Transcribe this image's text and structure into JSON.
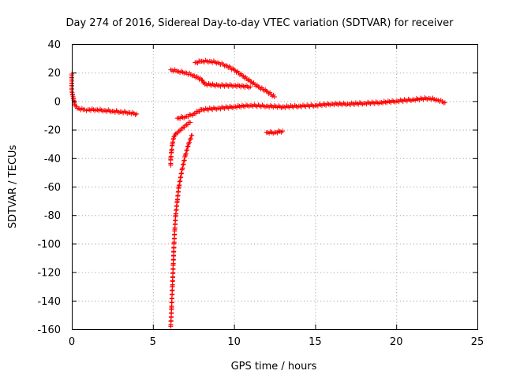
{
  "chart_data": {
    "type": "scatter",
    "title": "Day 274 of 2016, Sidereal Day-to-day VTEC variation (SDTVAR) for receiver",
    "xlabel": "GPS time / hours",
    "ylabel": "SDTVAR / TECUs",
    "xlim": [
      0,
      25
    ],
    "ylim": [
      -160,
      40
    ],
    "xticks": [
      "0",
      "5",
      "10",
      "15",
      "20",
      "25"
    ],
    "yticks": [
      "40",
      "20",
      "0",
      "-20",
      "-40",
      "-60",
      "-80",
      "-100",
      "-120",
      "-140",
      "-160"
    ],
    "grid": true,
    "marker": "+",
    "color": "#ff0000",
    "series": [
      {
        "x": [
          0.0,
          0.0,
          0.0,
          0.0,
          0.2,
          0.4,
          0.7,
          1.0,
          1.5,
          2.0,
          2.5,
          3.0,
          3.5,
          4.0
        ],
        "y": [
          19,
          15,
          11,
          7,
          -3,
          -5,
          -6,
          -6,
          -6,
          -6.5,
          -7,
          -7.5,
          -8,
          -9
        ]
      },
      {
        "x": [
          6.1,
          6.5,
          7.0,
          7.5,
          8.0,
          8.2
        ],
        "y": [
          22,
          21,
          20,
          18,
          15,
          12
        ]
      },
      {
        "x": [
          7.6,
          8.0,
          8.5,
          9.0,
          9.5,
          10.0,
          10.5,
          11.0,
          11.5,
          12.0,
          12.5
        ],
        "y": [
          27,
          28,
          28,
          27,
          25,
          22,
          18,
          14,
          10,
          7,
          3
        ]
      },
      {
        "x": [
          8.2,
          9.0,
          10.0,
          11.0
        ],
        "y": [
          12,
          11,
          11,
          10
        ]
      },
      {
        "x": [
          6.5,
          7.0,
          7.5,
          8.0,
          9.0,
          10.0,
          11.0,
          12.0,
          13.0
        ],
        "y": [
          -12,
          -11,
          -9,
          -6,
          -5,
          -4,
          -3,
          -3.5,
          -4
        ]
      },
      {
        "x": [
          12.0,
          12.5,
          13.0
        ],
        "y": [
          -22,
          -22,
          -21
        ]
      },
      {
        "x": [
          13.0,
          14.0,
          15.0,
          16.0,
          17.0,
          18.0,
          19.0,
          20.0,
          21.0,
          22.0,
          22.5,
          23.0
        ],
        "y": [
          -4,
          -3.5,
          -3,
          -2,
          -2,
          -1.5,
          -1,
          0,
          1,
          2,
          1,
          -1
        ]
      },
      {
        "x": [
          6.1,
          6.1,
          6.15,
          6.2,
          6.25,
          6.3,
          6.4,
          6.6,
          6.8,
          7.0,
          7.3
        ],
        "y": [
          -45,
          -40,
          -35,
          -30,
          -27,
          -25,
          -23,
          -21,
          -19,
          -17,
          -15
        ]
      },
      {
        "x": [
          6.1,
          6.15,
          6.2,
          6.25,
          6.3,
          6.35,
          6.4,
          6.5,
          6.6,
          6.8,
          7.0,
          7.2,
          7.4
        ],
        "y": [
          -158,
          -145,
          -130,
          -115,
          -100,
          -90,
          -80,
          -70,
          -60,
          -48,
          -38,
          -30,
          -24
        ]
      }
    ]
  }
}
